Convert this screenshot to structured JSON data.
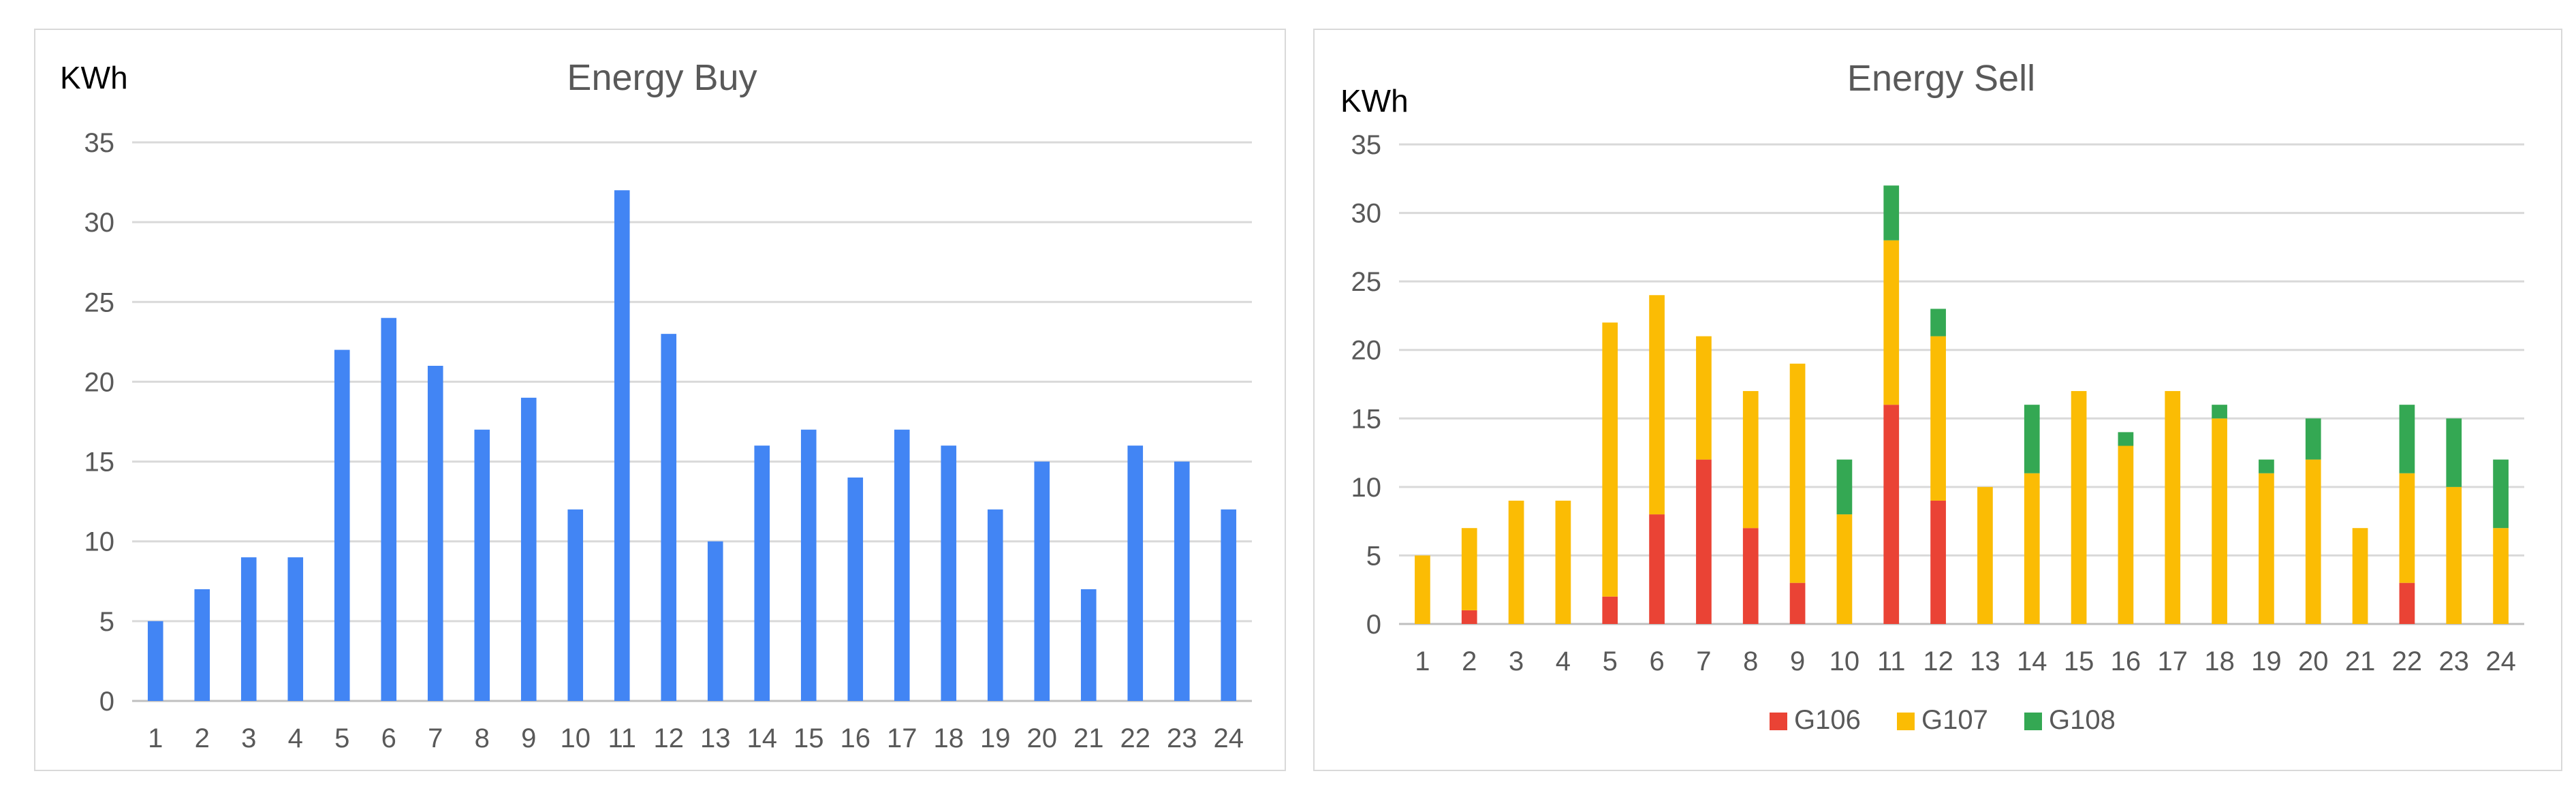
{
  "chart_data": [
    {
      "type": "bar",
      "title": "Energy Buy",
      "ylabel": "KWh",
      "xlabel": "",
      "ylim": [
        0,
        35
      ],
      "yticks": [
        0,
        5,
        10,
        15,
        20,
        25,
        30,
        35
      ],
      "categories": [
        "1",
        "2",
        "3",
        "4",
        "5",
        "6",
        "7",
        "8",
        "9",
        "10",
        "11",
        "12",
        "13",
        "14",
        "15",
        "16",
        "17",
        "18",
        "19",
        "20",
        "21",
        "22",
        "23",
        "24"
      ],
      "values": [
        5,
        7,
        9,
        9,
        22,
        24,
        21,
        17,
        19,
        12,
        32,
        23,
        10,
        16,
        17,
        14,
        17,
        16,
        12,
        15,
        7,
        16,
        15,
        12
      ],
      "color": "#4285f4",
      "grid": true,
      "legend": "none"
    },
    {
      "type": "bar",
      "stacked": true,
      "title": "Energy Sell",
      "ylabel": "KWh",
      "xlabel": "",
      "ylim": [
        0,
        35
      ],
      "yticks": [
        0,
        5,
        10,
        15,
        20,
        25,
        30,
        35
      ],
      "categories": [
        "1",
        "2",
        "3",
        "4",
        "5",
        "6",
        "7",
        "8",
        "9",
        "10",
        "11",
        "12",
        "13",
        "14",
        "15",
        "16",
        "17",
        "18",
        "19",
        "20",
        "21",
        "22",
        "23",
        "24"
      ],
      "series": [
        {
          "name": "G106",
          "color": "#ea4335",
          "values": [
            0,
            1,
            0,
            0,
            2,
            8,
            12,
            7,
            3,
            0,
            16,
            9,
            0,
            0,
            0,
            0,
            0,
            0,
            0,
            0,
            0,
            3,
            0,
            0
          ]
        },
        {
          "name": "G107",
          "color": "#fbbc04",
          "values": [
            5,
            6,
            9,
            9,
            20,
            16,
            9,
            10,
            16,
            8,
            12,
            12,
            10,
            11,
            17,
            13,
            17,
            15,
            11,
            12,
            7,
            8,
            10,
            7
          ]
        },
        {
          "name": "G108",
          "color": "#34a853",
          "values": [
            0,
            0,
            0,
            0,
            0,
            0,
            0,
            0,
            0,
            4,
            4,
            2,
            0,
            5,
            0,
            1,
            0,
            1,
            1,
            3,
            0,
            5,
            5,
            5
          ]
        }
      ],
      "grid": true,
      "legend": "bottom"
    }
  ]
}
